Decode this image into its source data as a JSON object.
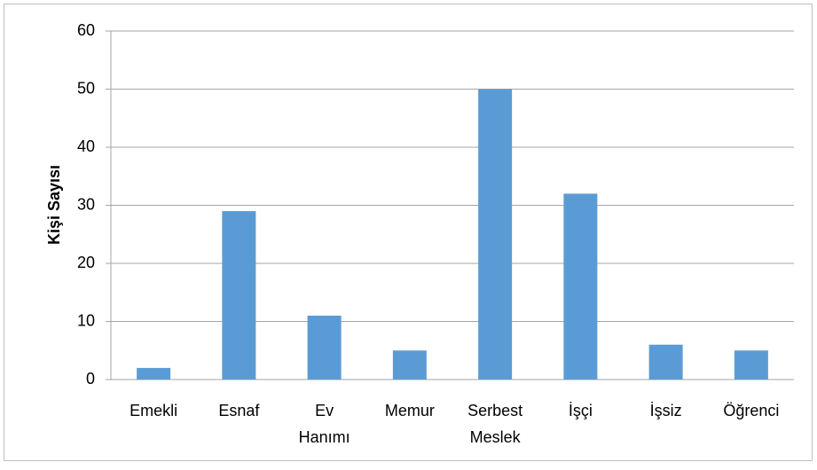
{
  "chart_data": {
    "type": "bar",
    "y_label": "Kişi Sayısı",
    "categories": [
      "Emekli",
      "Esnaf",
      "Ev Hanımı",
      "Memur",
      "Serbest Meslek",
      "İşçi",
      "İşsiz",
      "Öğrenci"
    ],
    "values": [
      2,
      29,
      11,
      5,
      50,
      32,
      6,
      5
    ],
    "color": "#5b9bd5",
    "ylim": [
      0,
      60
    ],
    "yticks": [
      0,
      10,
      20,
      30,
      40,
      50,
      60
    ],
    "grid": true
  }
}
